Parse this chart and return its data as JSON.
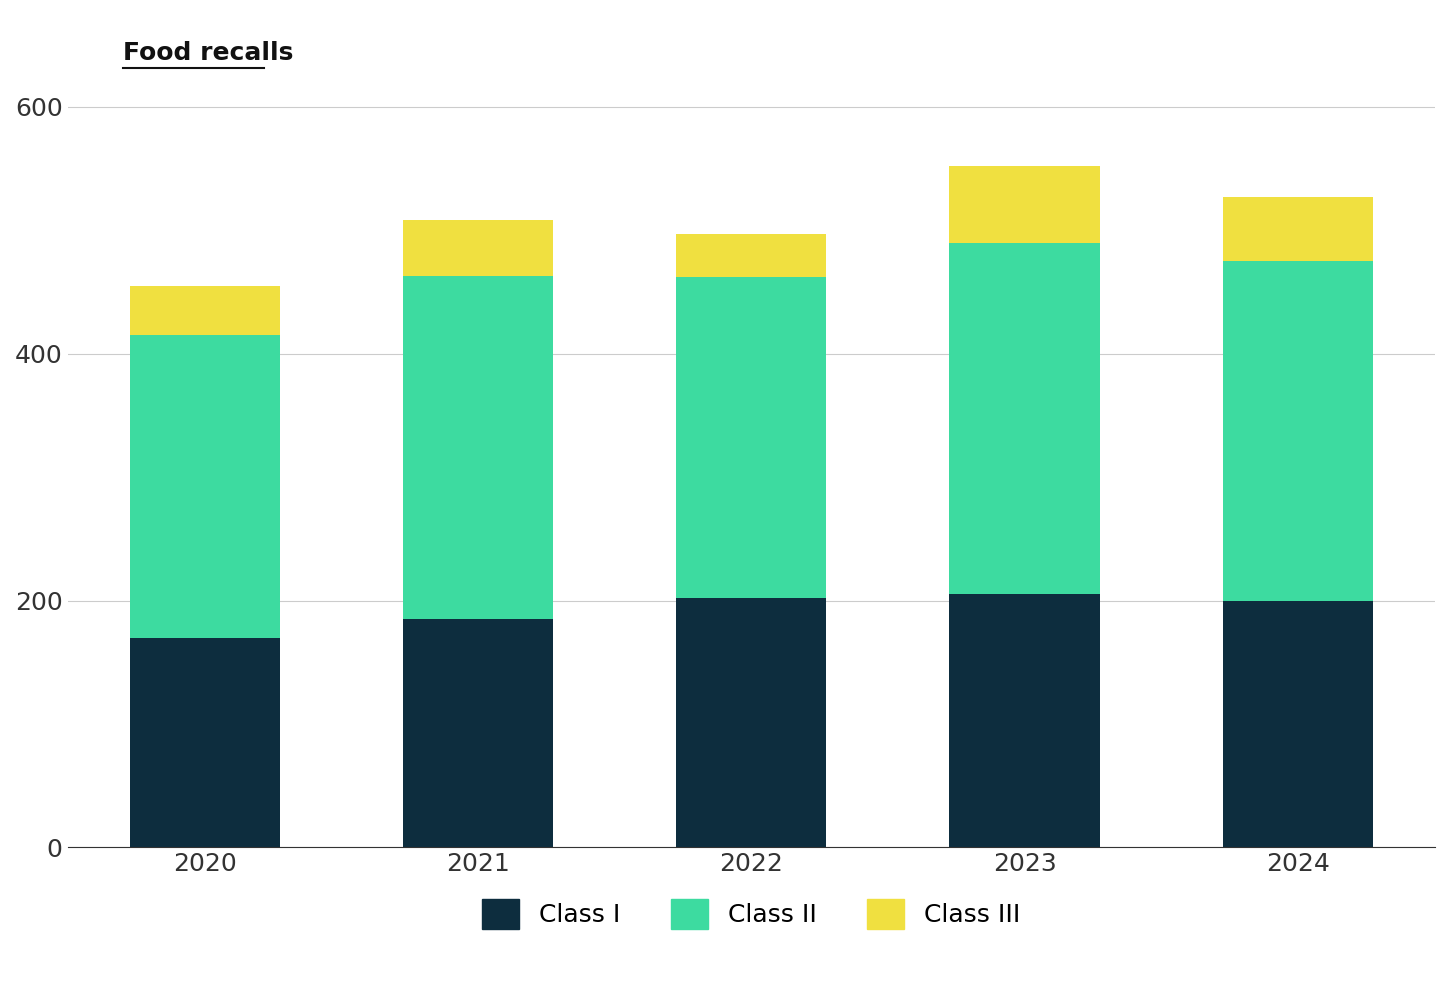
{
  "years": [
    "2020",
    "2021",
    "2022",
    "2023",
    "2024"
  ],
  "class_I": [
    170,
    185,
    202,
    205,
    200
  ],
  "class_II": [
    245,
    278,
    260,
    285,
    275
  ],
  "class_III": [
    40,
    45,
    35,
    62,
    52
  ],
  "color_I": "#0d2d3e",
  "color_II": "#3ddba0",
  "color_III": "#f0e040",
  "ylabel": "Food recalls",
  "yticks": [
    0,
    200,
    400,
    600
  ],
  "ylim": [
    0,
    650
  ],
  "background_color": "#ffffff",
  "grid_color": "#cccccc",
  "bar_width": 0.55,
  "legend_labels": [
    "Class I",
    "Class II",
    "Class III"
  ]
}
